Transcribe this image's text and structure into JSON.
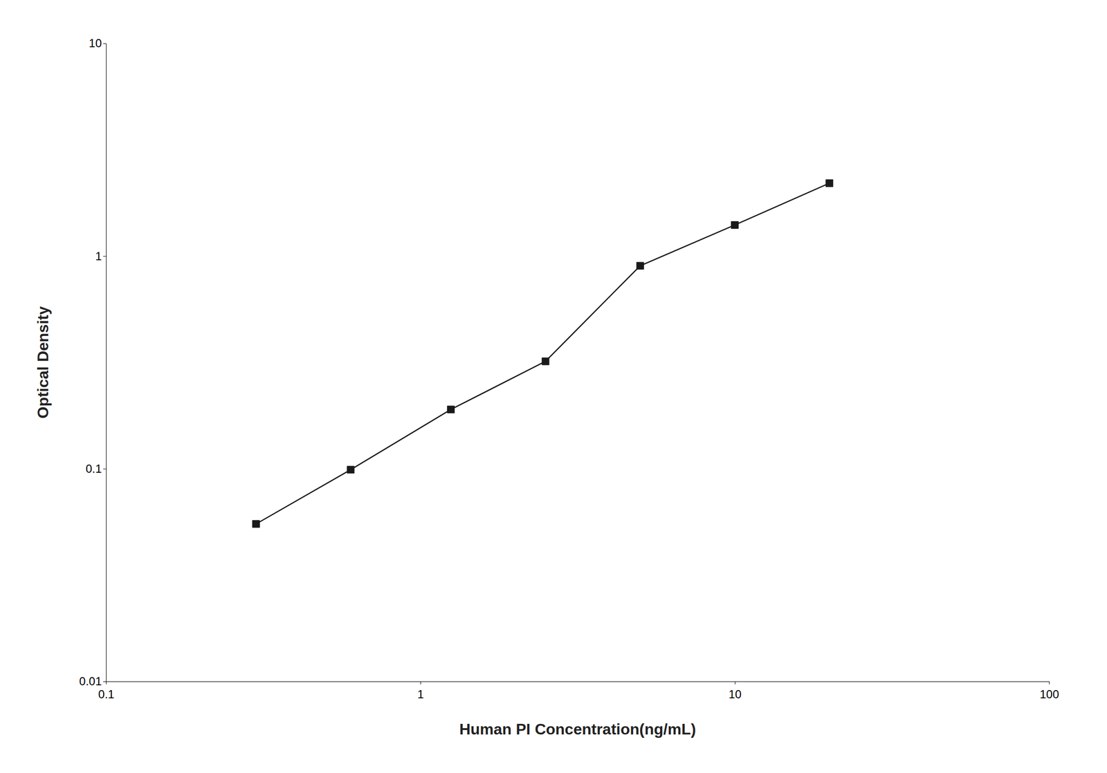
{
  "chart_data": {
    "type": "line",
    "x_label": "Human PI Concentration(ng/mL)",
    "y_label": "Optical Density",
    "x": [
      0.3,
      0.6,
      1.25,
      2.5,
      5,
      10,
      20
    ],
    "values": [
      0.055,
      0.099,
      0.19,
      0.32,
      0.9,
      1.4,
      2.2
    ],
    "xlim": [
      0.1,
      100
    ],
    "ylim": [
      0.01,
      10
    ],
    "xticks": [
      0.1,
      1,
      10,
      100
    ],
    "yticks": [
      0.01,
      0.1,
      1,
      10
    ],
    "log": true,
    "grid": false,
    "color": "#1a1a1a",
    "marker": "square",
    "line_style": "solid"
  }
}
